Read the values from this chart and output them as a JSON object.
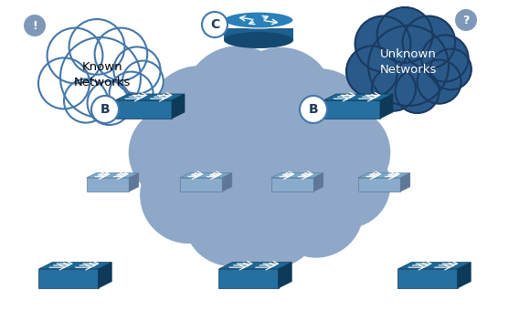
{
  "bg_color": "#ffffff",
  "cloud_color": "#8fa8c8",
  "cloud_color2": "#a0b8d0",
  "dark_cloud_color": "#2a5a8a",
  "dark_cloud_edge_color": "#1a3a60",
  "white_cloud_color": "#ffffff",
  "white_cloud_edge_color": "#4477aa",
  "switch_dark": "#1a5278",
  "switch_mid": "#2570a0",
  "switch_side": "#0d3a58",
  "switch_top": "#1e6898",
  "switch_faded_dark": "#7090b0",
  "switch_faded_mid": "#8aaccc",
  "switch_faded_side": "#607898",
  "switch_faded_top": "#7aaac8",
  "badge_color": "#8098b8",
  "label_color": "#1a3a60",
  "router_body": "#1e6090",
  "router_top": "#2a80b8",
  "router_side": "#144870",
  "text_known": "Known\nNetworks",
  "text_unknown": "Unknown\nNetworks",
  "label_B": "B",
  "label_C": "C",
  "badge_excl": "!",
  "badge_quest": "?"
}
